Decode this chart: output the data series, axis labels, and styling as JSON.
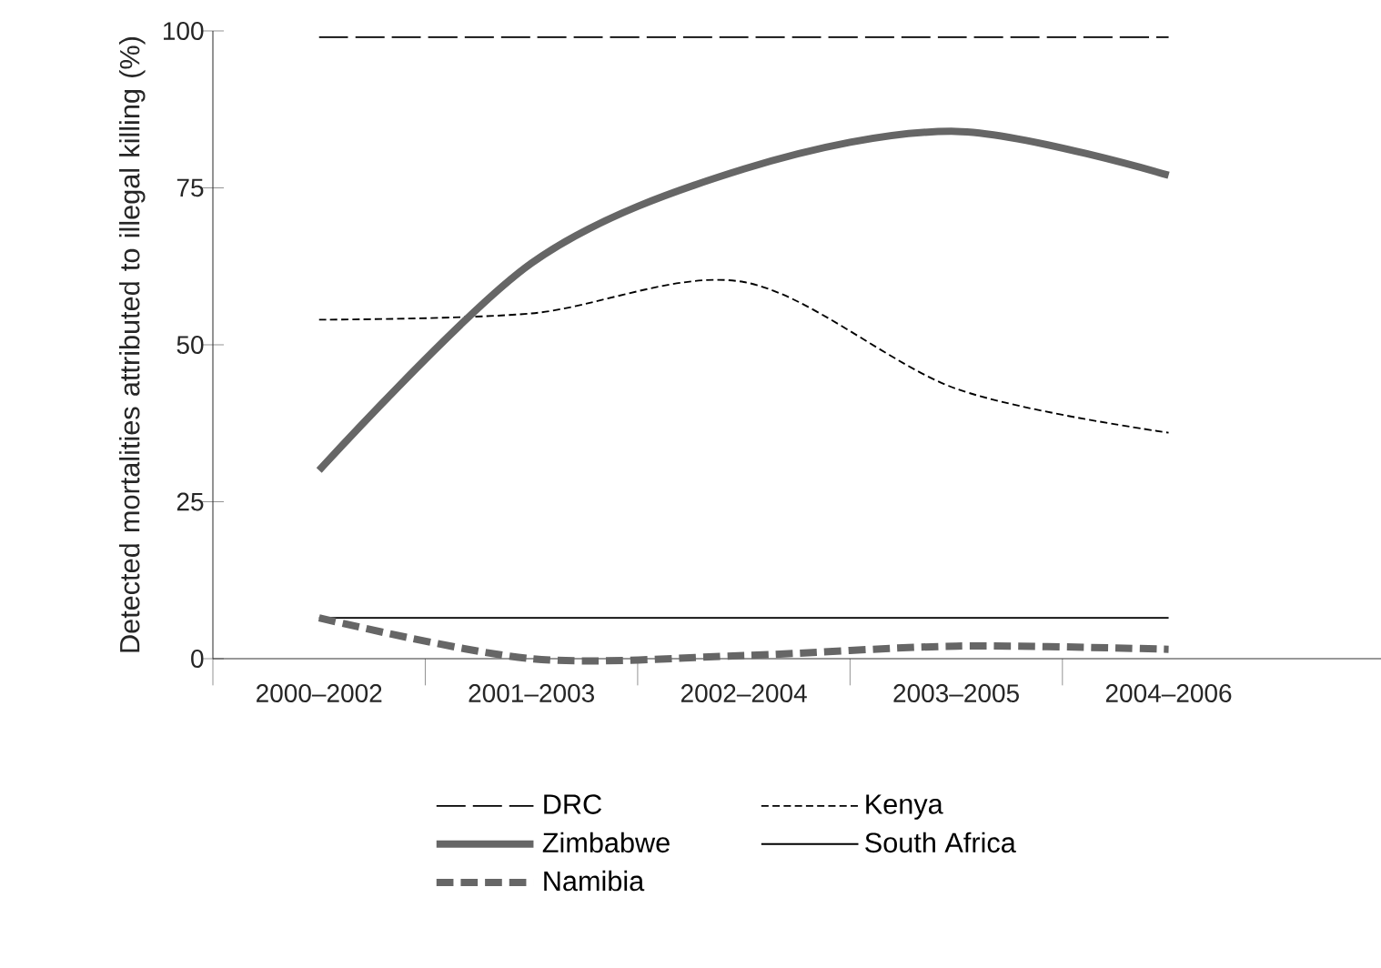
{
  "chart_data": {
    "type": "line",
    "ylabel": "Detected mortalities attributed to illegal killing (%)",
    "categories": [
      "2000–2002",
      "2001–2003",
      "2002–2004",
      "2003–2005",
      "2004–2006"
    ],
    "ylim": [
      0,
      100
    ],
    "yticks": [
      0,
      25,
      50,
      75,
      100
    ],
    "grid": false,
    "legend": "bottom",
    "series": [
      {
        "name": "DRC",
        "color": "#000000",
        "line_style": "dashed",
        "values": [
          99,
          99,
          99,
          99,
          99
        ]
      },
      {
        "name": "Kenya",
        "color": "#000000",
        "line_style": "dotted",
        "values": [
          54,
          55,
          60,
          43,
          36
        ]
      },
      {
        "name": "Zimbabwe",
        "color": "#666666",
        "line_style": "solid",
        "values": [
          30,
          63,
          78,
          84,
          77
        ]
      },
      {
        "name": "South Africa",
        "color": "#000000",
        "line_style": "solid",
        "values": [
          6.5,
          6.5,
          6.5,
          6.5,
          6.5
        ]
      },
      {
        "name": "Namibia",
        "color": "#666666",
        "line_style": "dashed",
        "values": [
          6.5,
          0,
          0.5,
          2,
          1.5
        ]
      }
    ]
  }
}
